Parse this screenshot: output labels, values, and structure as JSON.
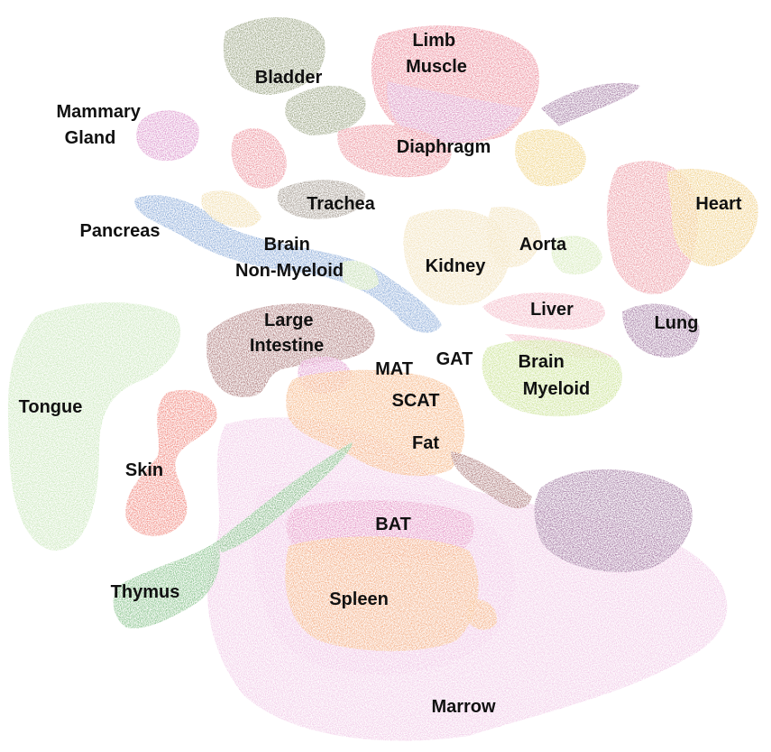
{
  "labels": {
    "limb_muscle": [
      "Limb",
      "Muscle"
    ],
    "bladder": "Bladder",
    "mammary_gland": [
      "Mammary",
      "Gland"
    ],
    "diaphragm": "Diaphragm",
    "trachea": "Trachea",
    "pancreas": "Pancreas",
    "heart": "Heart",
    "brain_non_myeloid": [
      "Brain",
      "Non-Myeloid"
    ],
    "kidney": "Kidney",
    "aorta": "Aorta",
    "liver": "Liver",
    "lung": "Lung",
    "large_intestine": [
      "Large",
      "Intestine"
    ],
    "gat": "GAT",
    "mat": "MAT",
    "brain_myeloid": [
      "Brain",
      "Myeloid"
    ],
    "scat": "SCAT",
    "tongue": "Tongue",
    "fat": "Fat",
    "skin": "Skin",
    "bat": "BAT",
    "thymus": "Thymus",
    "spleen": "Spleen",
    "marrow": "Marrow"
  },
  "colors": {
    "limb_muscle": "#e0485f",
    "limb_muscle_alt": "#c86ab0",
    "bladder": "#5a6b35",
    "mammary_gland": "#c85ab0",
    "diaphragm": "#e05060",
    "trachea": "#6a5a4a",
    "pancreas": "#3f74c0",
    "heart": "#e05a6a",
    "heart_alt": "#e8b440",
    "brain_non_myeloid": "#e8c878",
    "kidney": "#e8cc88",
    "aorta": "#b8dc88",
    "liver": "#ec8aa0",
    "lung": "#6a2a6a",
    "large_intestine": "#7a2a2a",
    "gat": "#d890c8",
    "mat": "#d060b0",
    "brain_myeloid": "#a8d050",
    "fat": "#f0883a",
    "tongue": "#a8d890",
    "skin": "#e84030",
    "bat": "#d860a8",
    "thymus": "#3a9a40",
    "spleen": "#f0883a",
    "marrow": "#e8a8d8",
    "diaphragm_gold": "#e8b838"
  }
}
